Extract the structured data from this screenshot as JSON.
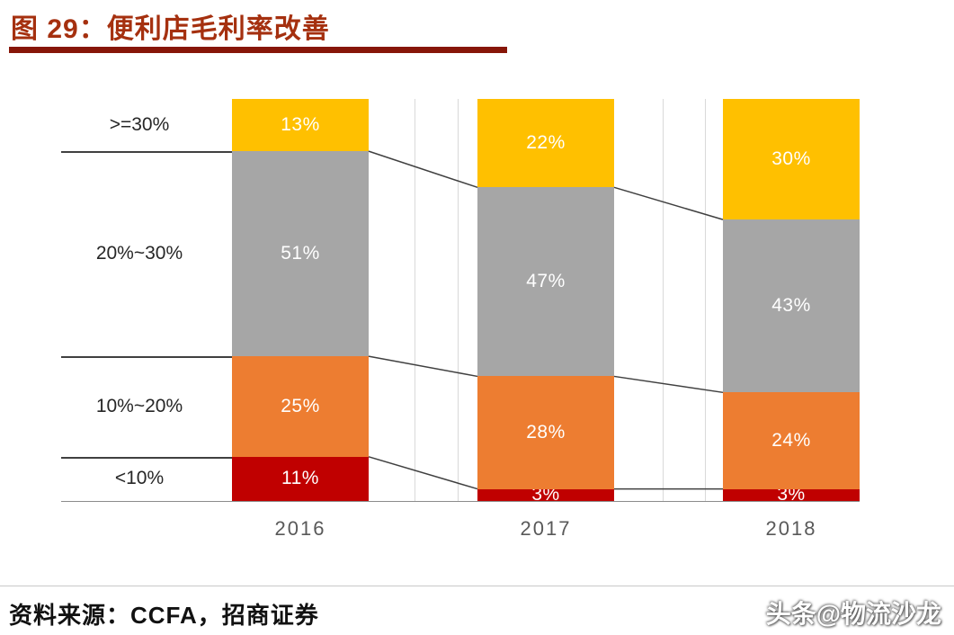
{
  "header": {
    "title": "图 29：便利店毛利率改善"
  },
  "chart_data": {
    "type": "bar",
    "stacked": true,
    "title": "便利店毛利率改善",
    "categories": [
      "2016",
      "2017",
      "2018"
    ],
    "series": [
      {
        "name": ">=30%",
        "color": "#FFC000",
        "values": [
          13,
          22,
          30
        ]
      },
      {
        "name": "20%~30%",
        "color": "#A6A6A6",
        "values": [
          51,
          47,
          43
        ]
      },
      {
        "name": "10%~20%",
        "color": "#ED7D31",
        "values": [
          25,
          28,
          24
        ]
      },
      {
        "name": "<10%",
        "color": "#C00000",
        "values": [
          11,
          3,
          3
        ]
      }
    ],
    "value_suffix": "%",
    "ylim": [
      0,
      100
    ],
    "legend_position": "left-row-labels",
    "grid": "vertical-minor-lines-between-categories",
    "annotations": "thin connector lines join segment boundaries of adjacent bars",
    "value_label_color": "#FFFFFF",
    "xtick_color": "#595959",
    "row_label_color": "#262626",
    "connector_color": "#404040",
    "gridline_color": "#D9D9D9",
    "baseline_color": "#8C8C8C"
  },
  "footer": {
    "source": "资料来源：CCFA，招商证券"
  },
  "watermark": {
    "text": "头条@物流沙龙"
  },
  "theme": {
    "title_color": "#A5300F",
    "title_underline_color": "#871608",
    "background": "#FFFFFF"
  }
}
